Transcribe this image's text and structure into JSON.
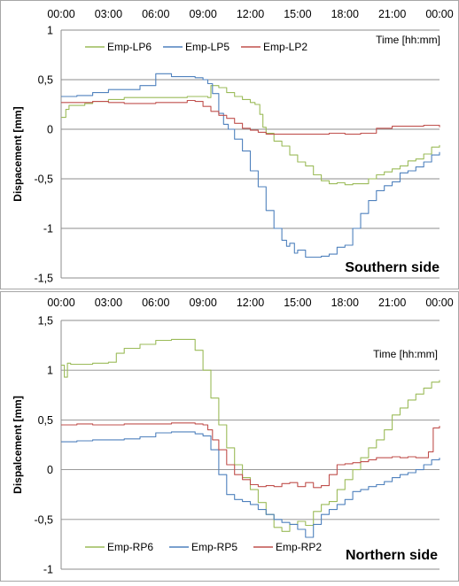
{
  "figure": {
    "background": "#ffffff"
  },
  "chart_data": [
    {
      "type": "line",
      "panel_label": "Southern side",
      "xlabel": "Time [hh:mm]",
      "ylabel": "Dispacement [mm]",
      "x_ticks": [
        "00:00",
        "03:00",
        "06:00",
        "09:00",
        "12:00",
        "15:00",
        "18:00",
        "21:00",
        "00:00"
      ],
      "y_ticks": [
        "1",
        "0,5",
        "0",
        "-0,5",
        "-1",
        "-1,5"
      ],
      "ylim": [
        -1.5,
        1
      ],
      "xlim_hours": [
        0,
        24
      ],
      "grid": true,
      "legend_position": "top-left",
      "series": [
        {
          "name": "Emp-LP6",
          "color": "#9bbb59",
          "x": [
            0,
            0.3,
            0.5,
            1,
            1.5,
            2,
            2.5,
            3,
            4,
            5,
            6,
            7,
            8,
            9,
            9.3,
            9.5,
            10,
            10.5,
            11,
            11.5,
            12,
            12.3,
            12.6,
            12.8,
            13,
            13.5,
            14,
            14.5,
            15,
            15.5,
            16,
            16.5,
            17,
            17.5,
            18,
            18.5,
            19,
            19.5,
            20,
            20.5,
            21,
            21.5,
            22,
            22.5,
            23,
            23.5,
            24
          ],
          "y": [
            0.12,
            0.2,
            0.24,
            0.24,
            0.26,
            0.28,
            0.28,
            0.3,
            0.32,
            0.32,
            0.32,
            0.32,
            0.33,
            0.33,
            0.32,
            0.44,
            0.42,
            0.37,
            0.33,
            0.3,
            0.27,
            0.25,
            0.15,
            0.02,
            -0.04,
            -0.12,
            -0.17,
            -0.26,
            -0.33,
            -0.37,
            -0.46,
            -0.52,
            -0.55,
            -0.54,
            -0.56,
            -0.55,
            -0.55,
            -0.5,
            -0.46,
            -0.43,
            -0.4,
            -0.37,
            -0.32,
            -0.3,
            -0.25,
            -0.18,
            -0.16
          ]
        },
        {
          "name": "Emp-LP5",
          "color": "#4f81bd",
          "x": [
            0,
            1,
            2,
            3,
            4,
            5,
            6,
            7,
            8,
            8.5,
            9,
            9.3,
            9.6,
            10,
            10.3,
            10.6,
            11,
            11.5,
            12,
            12.5,
            13,
            13.5,
            14,
            14.3,
            14.5,
            14.8,
            15,
            15.5,
            16,
            16.5,
            17,
            17.5,
            18,
            18.5,
            19,
            19.5,
            20,
            20.5,
            21,
            21.5,
            22,
            22.5,
            23,
            23.5,
            24
          ],
          "y": [
            0.33,
            0.34,
            0.37,
            0.4,
            0.4,
            0.44,
            0.56,
            0.53,
            0.53,
            0.52,
            0.5,
            0.46,
            0.36,
            0.16,
            0.05,
            0,
            -0.1,
            -0.22,
            -0.42,
            -0.58,
            -0.82,
            -1.0,
            -1.12,
            -1.18,
            -1.15,
            -1.25,
            -1.22,
            -1.29,
            -1.29,
            -1.28,
            -1.26,
            -1.19,
            -1.17,
            -1.0,
            -0.85,
            -0.72,
            -0.62,
            -0.57,
            -0.53,
            -0.44,
            -0.42,
            -0.38,
            -0.33,
            -0.26,
            -0.23
          ]
        },
        {
          "name": "Emp-LP2",
          "color": "#c0504d",
          "x": [
            0,
            1,
            2,
            3,
            4,
            5,
            6,
            7,
            8,
            8.5,
            9,
            9.5,
            10,
            10.5,
            11,
            11.5,
            12,
            12.5,
            13,
            14,
            15,
            16,
            17,
            18,
            19,
            20,
            21,
            22,
            23,
            24
          ],
          "y": [
            0.27,
            0.27,
            0.28,
            0.27,
            0.26,
            0.26,
            0.27,
            0.27,
            0.29,
            0.28,
            0.23,
            0.18,
            0.14,
            0.11,
            0.06,
            0.01,
            -0.01,
            -0.03,
            -0.05,
            -0.05,
            -0.05,
            -0.05,
            -0.04,
            -0.05,
            -0.04,
            0.01,
            0.03,
            0.03,
            0.04,
            0.02
          ]
        }
      ]
    },
    {
      "type": "line",
      "panel_label": "Northern side",
      "xlabel": "Time [hh:mm]",
      "ylabel": "Dispalcement [mm]",
      "x_ticks": [
        "00:00",
        "03:00",
        "06:00",
        "09:00",
        "12:00",
        "15:00",
        "18:00",
        "21:00",
        "00:00"
      ],
      "y_ticks": [
        "1,5",
        "1",
        "0,5",
        "0",
        "-0,5",
        "-1"
      ],
      "ylim": [
        -1,
        1.5
      ],
      "xlim_hours": [
        0,
        24
      ],
      "grid": true,
      "legend_position": "bottom-left",
      "series": [
        {
          "name": "Emp-RP6",
          "color": "#9bbb59",
          "x": [
            0,
            0.2,
            0.4,
            0.6,
            1,
            2,
            3,
            3.5,
            4,
            5,
            6,
            7,
            8,
            8.5,
            9,
            9.5,
            10,
            10.5,
            11,
            11.5,
            12,
            12.5,
            13,
            13.5,
            14,
            14.5,
            15,
            15.5,
            16,
            16.5,
            17,
            17.5,
            18,
            18.5,
            19,
            19.5,
            20,
            20.5,
            21,
            21.5,
            22,
            22.5,
            23,
            23.5,
            24
          ],
          "y": [
            1.05,
            0.93,
            1.07,
            1.06,
            1.06,
            1.07,
            1.08,
            1.17,
            1.22,
            1.26,
            1.3,
            1.31,
            1.31,
            1.2,
            1.0,
            0.72,
            0.45,
            0.22,
            0.05,
            -0.08,
            -0.2,
            -0.33,
            -0.45,
            -0.58,
            -0.62,
            -0.55,
            -0.52,
            -0.56,
            -0.42,
            -0.35,
            -0.32,
            -0.2,
            -0.1,
            0.0,
            0.12,
            0.22,
            0.3,
            0.4,
            0.55,
            0.62,
            0.7,
            0.76,
            0.82,
            0.88,
            0.9
          ]
        },
        {
          "name": "Emp-RP5",
          "color": "#4f81bd",
          "x": [
            0,
            1,
            2,
            3,
            4,
            5,
            6,
            7,
            8,
            8.5,
            9,
            9.5,
            10,
            10.5,
            11,
            11.5,
            12,
            12.5,
            13,
            13.5,
            14,
            14.5,
            15,
            15.5,
            16,
            16.5,
            17,
            17.5,
            18,
            18.5,
            19,
            19.5,
            20,
            20.5,
            21,
            21.5,
            22,
            22.5,
            23,
            23.5,
            24
          ],
          "y": [
            0.28,
            0.29,
            0.3,
            0.3,
            0.31,
            0.33,
            0.37,
            0.38,
            0.38,
            0.36,
            0.34,
            0.2,
            -0.05,
            -0.25,
            -0.3,
            -0.32,
            -0.35,
            -0.4,
            -0.45,
            -0.5,
            -0.53,
            -0.55,
            -0.6,
            -0.68,
            -0.55,
            -0.45,
            -0.4,
            -0.35,
            -0.3,
            -0.22,
            -0.2,
            -0.17,
            -0.15,
            -0.12,
            -0.08,
            -0.05,
            -0.03,
            0,
            0.05,
            0.1,
            0.12
          ]
        },
        {
          "name": "Emp-RP2",
          "color": "#c0504d",
          "x": [
            0,
            1,
            2,
            3,
            4,
            5,
            6,
            7,
            8,
            8.5,
            9,
            9.3,
            9.6,
            10,
            10.5,
            11,
            11.5,
            12,
            12.5,
            13,
            13.5,
            14,
            14.5,
            15,
            15.5,
            16,
            16.5,
            17,
            17.5,
            18,
            18.5,
            19,
            19.5,
            20,
            20.5,
            21,
            21.5,
            22,
            22.5,
            23,
            23.3,
            23.6,
            24
          ],
          "y": [
            0.45,
            0.46,
            0.45,
            0.45,
            0.46,
            0.46,
            0.46,
            0.47,
            0.47,
            0.46,
            0.45,
            0.4,
            0.3,
            0.2,
            0.05,
            -0.05,
            -0.1,
            -0.15,
            -0.17,
            -0.16,
            -0.17,
            -0.14,
            -0.13,
            -0.17,
            -0.13,
            -0.18,
            -0.16,
            -0.05,
            0.05,
            0.06,
            0.07,
            0.08,
            0.1,
            0.12,
            0.12,
            0.13,
            0.12,
            0.13,
            0.12,
            0.12,
            0.18,
            0.42,
            0.44
          ]
        }
      ]
    }
  ]
}
